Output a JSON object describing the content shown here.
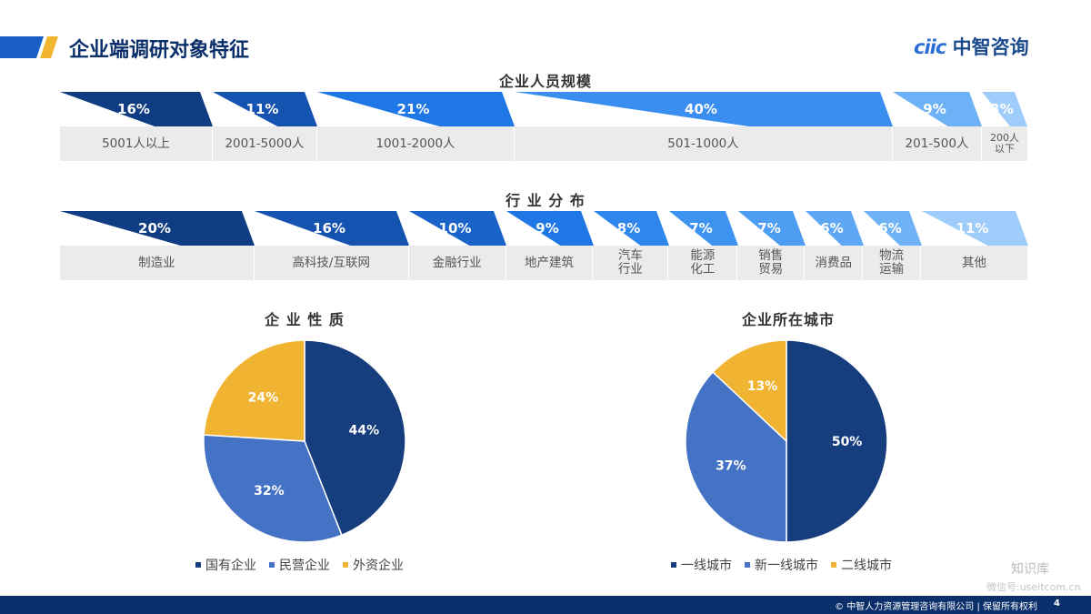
{
  "header": {
    "title": "企业端调研对象特征",
    "logo_mark": "ciic",
    "logo_text": "中智咨询"
  },
  "colors": {
    "navy": "#0b2f6b",
    "stripe_blue": "#1a5fc8",
    "stripe_yellow": "#f2b52f"
  },
  "chart_data": [
    {
      "type": "bar",
      "title": "企业人员规模",
      "categories": [
        "5001人以上",
        "2001-5000人",
        "1001-2000人",
        "501-1000人",
        "201-500人",
        "200人\n以下"
      ],
      "values": [
        16,
        11,
        21,
        40,
        9,
        3
      ],
      "value_labels": [
        "16%",
        "11%",
        "21%",
        "40%",
        "9%",
        "3%"
      ],
      "colors": [
        "#0f3c82",
        "#1553b0",
        "#1f77e6",
        "#3a8ef0",
        "#6db1f7",
        "#9fcdfb"
      ]
    },
    {
      "type": "bar",
      "title": "行 业 分 布",
      "categories": [
        "制造业",
        "高科技/互联网",
        "金融行业",
        "地产建筑",
        "汽车\n行业",
        "能源\n化工",
        "销售\n贸易",
        "消费品",
        "物流\n运输",
        "其他"
      ],
      "values": [
        20,
        16,
        10,
        9,
        8,
        7,
        7,
        6,
        6,
        11
      ],
      "value_labels": [
        "20%",
        "16%",
        "10%",
        "9%",
        "8%",
        "7%",
        "7%",
        "6%",
        "6%",
        "11%"
      ],
      "colors": [
        "#0f3c82",
        "#1553b0",
        "#1a63c9",
        "#1f77e6",
        "#2f86ec",
        "#3e93f0",
        "#4d9df2",
        "#5ea7f4",
        "#70b2f6",
        "#9fcdfb"
      ]
    },
    {
      "type": "pie",
      "title": "企 业 性 质",
      "categories": [
        "国有企业",
        "民营企业",
        "外资企业"
      ],
      "values": [
        44,
        32,
        24
      ],
      "value_labels": [
        "44%",
        "32%",
        "24%"
      ],
      "colors": [
        "#163d7d",
        "#4472c4",
        "#f0b432"
      ]
    },
    {
      "type": "pie",
      "title": "企业所在城市",
      "categories": [
        "一线城市",
        "新一线城市",
        "二线城市"
      ],
      "values": [
        50,
        37,
        13
      ],
      "value_labels": [
        "50%",
        "37%",
        "13%"
      ],
      "colors": [
        "#163d7d",
        "#4472c4",
        "#f0b432"
      ]
    }
  ],
  "footer": {
    "copyright": "© 中智人力资源管理咨询有限公司 | 保留所有权利",
    "page_number": "4"
  },
  "watermark": {
    "brand": "知识库",
    "account": "微信号:useitcom.cn"
  }
}
